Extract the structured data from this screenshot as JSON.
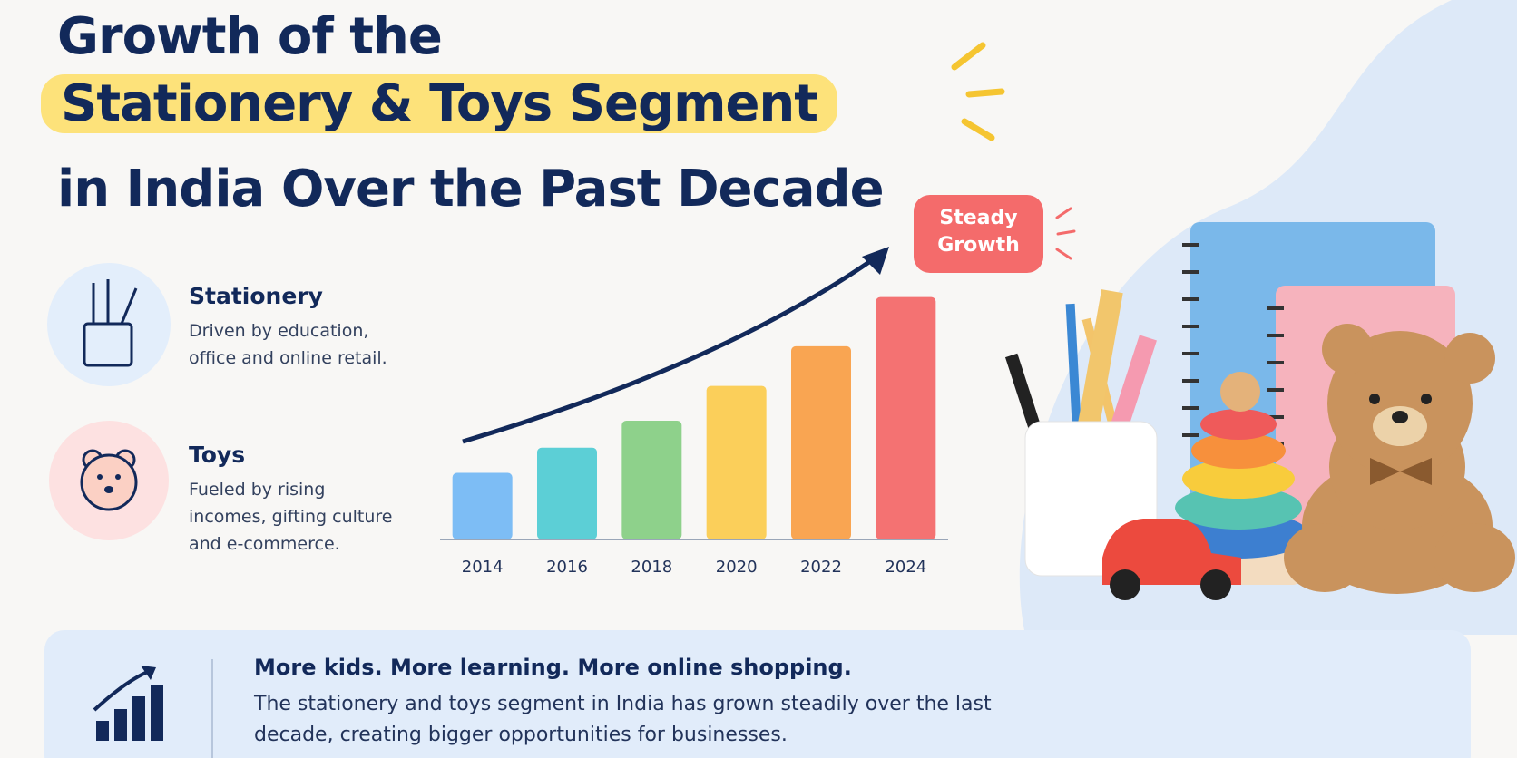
{
  "header": {
    "title_lines": [
      "Growth of the",
      "Stationery & Toys Segment",
      "in India Over the Past Decade"
    ]
  },
  "segments": [
    {
      "title": "Stationery",
      "description": "Driven by education, office and online retail."
    },
    {
      "title": "Toys",
      "description": "Fueled by rising incomes, gifting culture and e-commerce."
    }
  ],
  "chart_data": {
    "type": "bar",
    "annotation": "Steady Growth",
    "categories": [
      "2014",
      "2016",
      "2018",
      "2020",
      "2022",
      "2024"
    ],
    "values": [
      69,
      95,
      123,
      159,
      200,
      251
    ],
    "colors": [
      "#7dbdf5",
      "#5ccfd6",
      "#8ed18b",
      "#fbcf5a",
      "#f9a552",
      "#f47272"
    ],
    "ylim": [
      0,
      260
    ]
  },
  "footer": {
    "headline": "More kids. More learning. More online shopping.",
    "body": "The stationery and toys segment in India has grown steadily over the last decade, creating bigger opportunities for businesses."
  }
}
